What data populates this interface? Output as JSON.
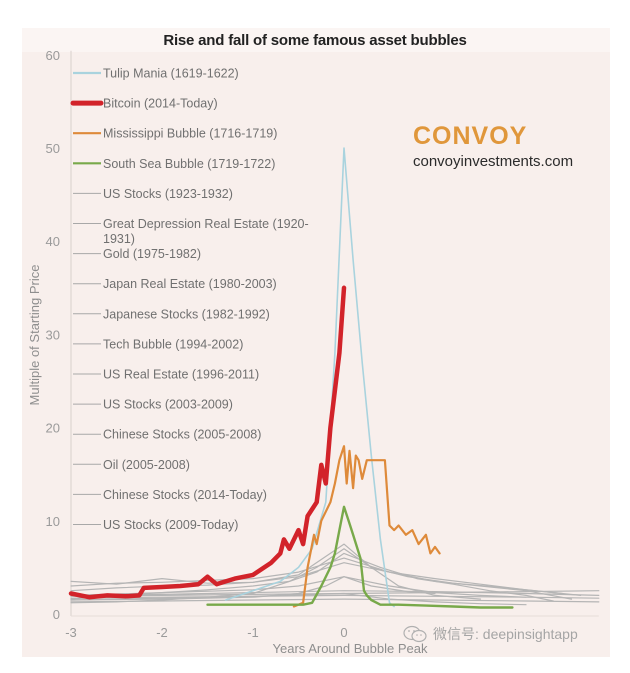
{
  "chart_data": {
    "type": "line",
    "title": "Rise and fall of some famous asset bubbles",
    "xlabel": "Years Around Bubble Peak",
    "ylabel": "Multiple of Starting Price",
    "xlim": [
      -3,
      2.8
    ],
    "ylim": [
      0,
      60
    ],
    "xticks": [
      -3,
      -2,
      -1,
      0
    ],
    "xtick_labels": [
      "-3",
      "-2",
      "-1",
      "0"
    ],
    "yticks": [
      0,
      10,
      20,
      30,
      40,
      50,
      60
    ],
    "ytick_labels": [
      "0",
      "10",
      "20",
      "30",
      "40",
      "50",
      "60"
    ],
    "grid": false,
    "legend_position": "top-left",
    "series": [
      {
        "name": "Tulip Mania (1619-1622)",
        "color": "#a9d3de",
        "width": 1.6,
        "x": [
          -1.3,
          -1.0,
          -0.7,
          -0.5,
          -0.35,
          -0.2,
          -0.1,
          0.0,
          0.1,
          0.2,
          0.3,
          0.4,
          0.5,
          0.55
        ],
        "y": [
          1.5,
          2.5,
          3.5,
          5.0,
          7.0,
          12.0,
          28.0,
          50.0,
          38.0,
          27.0,
          17.0,
          8.0,
          1.2,
          0.8
        ]
      },
      {
        "name": "Bitcoin (2014-Today)",
        "color": "#d2232a",
        "width": 4.5,
        "x": [
          -3.0,
          -2.8,
          -2.6,
          -2.4,
          -2.25,
          -2.2,
          -2.0,
          -1.8,
          -1.6,
          -1.5,
          -1.4,
          -1.3,
          -1.2,
          -1.0,
          -0.8,
          -0.7,
          -0.66,
          -0.6,
          -0.5,
          -0.45,
          -0.4,
          -0.3,
          -0.25,
          -0.2,
          -0.15,
          -0.1,
          -0.05,
          0.0
        ],
        "y": [
          2.2,
          1.8,
          2.0,
          1.9,
          2.0,
          2.8,
          2.9,
          3.0,
          3.2,
          4.0,
          3.2,
          3.5,
          3.8,
          4.2,
          5.5,
          6.5,
          8.0,
          7.0,
          9.0,
          7.5,
          10.5,
          12.0,
          16.0,
          14.0,
          20.0,
          24.0,
          28.0,
          35.0
        ]
      },
      {
        "name": "Mississippi Bubble (1716-1719)",
        "color": "#de8a3a",
        "width": 2.2,
        "x": [
          -0.55,
          -0.45,
          -0.4,
          -0.33,
          -0.3,
          -0.25,
          -0.15,
          -0.1,
          -0.05,
          0.0,
          0.03,
          0.06,
          0.1,
          0.13,
          0.16,
          0.2,
          0.25,
          0.35,
          0.45,
          0.5,
          0.55,
          0.6,
          0.68,
          0.75,
          0.82,
          0.9,
          0.95,
          1.0,
          1.05
        ],
        "y": [
          0.8,
          1.2,
          5.0,
          8.5,
          7.5,
          10.0,
          12.0,
          14.0,
          16.5,
          18.0,
          14.0,
          17.5,
          13.5,
          17.0,
          16.5,
          14.5,
          16.5,
          16.5,
          16.5,
          9.5,
          9.0,
          9.5,
          8.5,
          9.0,
          7.5,
          8.5,
          6.5,
          7.2,
          6.5
        ]
      },
      {
        "name": "South Sea Bubble (1719-1722)",
        "color": "#78a94a",
        "width": 2.4,
        "x": [
          -1.5,
          -1.2,
          -0.9,
          -0.6,
          -0.45,
          -0.35,
          -0.25,
          -0.15,
          -0.1,
          -0.05,
          0.0,
          0.05,
          0.1,
          0.18,
          0.22,
          0.25,
          0.3,
          0.4,
          0.6,
          0.9,
          1.2,
          1.5,
          1.85
        ],
        "y": [
          1.0,
          1.0,
          1.0,
          1.0,
          1.0,
          1.2,
          3.0,
          5.0,
          6.5,
          9.0,
          11.5,
          10.0,
          8.5,
          6.0,
          2.5,
          2.0,
          1.5,
          1.0,
          1.0,
          0.9,
          0.8,
          0.7,
          0.7
        ]
      },
      {
        "name": "US Stocks (1923-1932)",
        "color": "#b5b5b5",
        "width": 1.2,
        "x": [
          -3.0,
          -2.5,
          -2.0,
          -1.5,
          -1.0,
          -0.5,
          0.0,
          0.5,
          1.0,
          1.5,
          2.0,
          2.5
        ],
        "y": [
          3.0,
          3.3,
          3.4,
          3.6,
          3.8,
          4.5,
          6.0,
          4.5,
          3.5,
          3.0,
          2.5,
          1.6
        ]
      },
      {
        "name": "Great Depression Real Estate (1920-1931)",
        "color": "#b5b5b5",
        "width": 1.2,
        "x": [
          -3.0,
          -2.0,
          -1.0,
          0.0,
          1.0,
          2.0,
          2.8
        ],
        "y": [
          1.3,
          1.4,
          1.5,
          1.6,
          1.5,
          1.4,
          1.3
        ]
      },
      {
        "name": "Gold (1975-1982)",
        "color": "#b5b5b5",
        "width": 1.2,
        "x": [
          -3.0,
          -2.5,
          -2.0,
          -1.5,
          -1.0,
          -0.5,
          0.0,
          0.3,
          0.7,
          1.2,
          1.8,
          2.4
        ],
        "y": [
          3.5,
          3.2,
          3.8,
          3.3,
          3.4,
          4.2,
          7.5,
          5.0,
          4.0,
          3.3,
          2.8,
          2.2
        ]
      },
      {
        "name": "Japan Real Estate (1980-2003)",
        "color": "#b5b5b5",
        "width": 1.2,
        "x": [
          -3.0,
          -2.0,
          -1.0,
          0.0,
          1.0,
          2.0,
          2.8
        ],
        "y": [
          2.0,
          2.1,
          2.3,
          2.5,
          2.4,
          2.2,
          2.0
        ]
      },
      {
        "name": "Japanese Stocks (1982-1992)",
        "color": "#b5b5b5",
        "width": 1.2,
        "x": [
          -3.0,
          -2.5,
          -2.0,
          -1.5,
          -1.0,
          -0.5,
          0.0,
          0.5,
          1.0,
          1.5,
          2.0,
          2.6
        ],
        "y": [
          2.5,
          2.8,
          3.0,
          3.1,
          3.4,
          4.0,
          5.5,
          4.5,
          3.8,
          3.2,
          2.6,
          2.0
        ]
      },
      {
        "name": "Tech Bubble (1994-2002)",
        "color": "#b5b5b5",
        "width": 1.2,
        "x": [
          -3.0,
          -2.5,
          -2.0,
          -1.5,
          -1.0,
          -0.6,
          -0.3,
          0.0,
          0.4,
          0.8,
          1.2,
          1.6,
          2.0,
          2.3
        ],
        "y": [
          1.6,
          2.0,
          2.3,
          2.6,
          3.0,
          3.5,
          4.5,
          6.5,
          5.0,
          3.8,
          3.2,
          2.5,
          2.0,
          1.4
        ]
      },
      {
        "name": "US Real Estate (1996-2011)",
        "color": "#b5b5b5",
        "width": 1.2,
        "x": [
          -3.0,
          -2.0,
          -1.0,
          0.0,
          1.0,
          2.0,
          2.8
        ],
        "y": [
          1.7,
          1.8,
          1.9,
          2.0,
          1.9,
          1.8,
          1.7
        ]
      },
      {
        "name": "US Stocks (2003-2009)",
        "color": "#b5b5b5",
        "width": 1.2,
        "x": [
          -3.0,
          -2.0,
          -1.0,
          0.0,
          0.5,
          1.0,
          1.5,
          2.0
        ],
        "y": [
          1.5,
          1.7,
          1.9,
          2.2,
          1.6,
          1.3,
          1.1,
          1.0
        ]
      },
      {
        "name": "Chinese Stocks (2005-2008)",
        "color": "#b5b5b5",
        "width": 1.2,
        "x": [
          -3.0,
          -2.5,
          -2.0,
          -1.5,
          -1.0,
          -0.6,
          -0.3,
          0.0,
          0.3,
          0.6,
          1.0,
          1.5
        ],
        "y": [
          1.2,
          1.3,
          1.5,
          1.8,
          2.2,
          3.5,
          5.0,
          7.0,
          5.0,
          3.0,
          2.0,
          1.6
        ]
      },
      {
        "name": "Oil (2005-2008)",
        "color": "#b5b5b5",
        "width": 1.2,
        "x": [
          -3.0,
          -2.0,
          -1.0,
          -0.5,
          0.0,
          0.5,
          1.0,
          1.5,
          2.0
        ],
        "y": [
          2.0,
          2.3,
          2.6,
          3.0,
          4.0,
          3.0,
          2.3,
          2.0,
          1.8
        ]
      },
      {
        "name": "Chinese Stocks (2014-Today)",
        "color": "#b5b5b5",
        "width": 1.2,
        "x": [
          -3.0,
          -2.0,
          -1.0,
          -0.5,
          -0.2,
          0.0,
          0.3,
          0.7,
          1.0
        ],
        "y": [
          1.5,
          1.6,
          1.8,
          2.2,
          3.0,
          4.0,
          3.0,
          2.4,
          2.2
        ]
      },
      {
        "name": "US Stocks (2009-Today)",
        "color": "#b5b5b5",
        "width": 1.2,
        "x": [
          -3.0,
          -2.0,
          -1.0,
          0.0,
          1.0,
          2.0,
          2.8
        ],
        "y": [
          1.9,
          2.0,
          2.1,
          2.2,
          2.3,
          2.4,
          2.5
        ]
      }
    ]
  },
  "branding": {
    "name": "CONVOY",
    "url": "convoyinvestments.com"
  },
  "watermark": {
    "text": "微信号: deepinsightapp",
    "icon": "wechat-icon"
  }
}
